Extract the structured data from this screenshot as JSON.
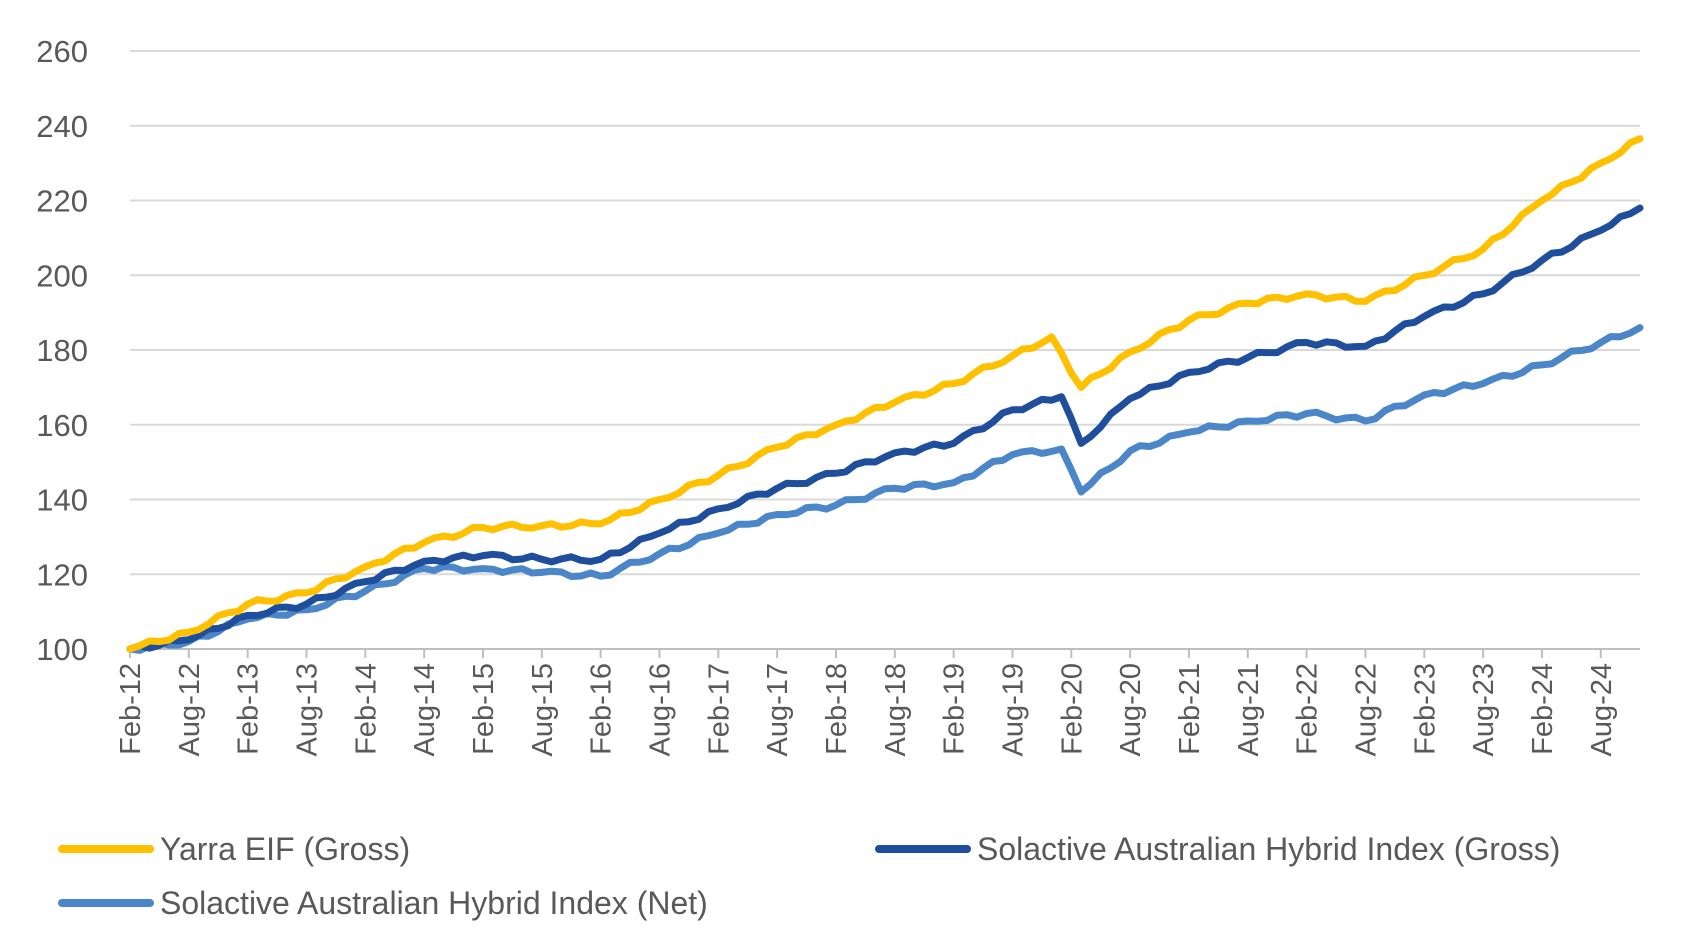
{
  "chart_data": {
    "type": "line",
    "title": "",
    "xlabel": "",
    "ylabel": "",
    "ylim": [
      100,
      260
    ],
    "yticks": [
      100,
      120,
      140,
      160,
      180,
      200,
      220,
      240,
      260
    ],
    "grid": true,
    "legend_position": "bottom",
    "x_tick_labels": [
      "Feb-12",
      "Aug-12",
      "Feb-13",
      "Aug-13",
      "Feb-14",
      "Aug-14",
      "Feb-15",
      "Aug-15",
      "Feb-16",
      "Aug-16",
      "Feb-17",
      "Aug-17",
      "Feb-18",
      "Aug-18",
      "Feb-19",
      "Aug-19",
      "Feb-20",
      "Aug-20",
      "Feb-21",
      "Aug-21",
      "Feb-22",
      "Aug-22",
      "Feb-23",
      "Aug-23",
      "Feb-24",
      "Aug-24"
    ],
    "x_start": "Feb-12",
    "x_end": "Dec-24",
    "series": [
      {
        "name": "Yarra EIF (Gross)",
        "color": "#FFC000",
        "points": [
          [
            "Feb-12",
            100
          ],
          [
            "Aug-12",
            104.5
          ],
          [
            "Feb-13",
            112
          ],
          [
            "Aug-13",
            115
          ],
          [
            "Feb-14",
            122
          ],
          [
            "Aug-14",
            128.5
          ],
          [
            "Feb-15",
            132.5
          ],
          [
            "Aug-15",
            133
          ],
          [
            "Feb-16",
            133.5
          ],
          [
            "Aug-16",
            140
          ],
          [
            "Feb-17",
            146.5
          ],
          [
            "Aug-17",
            154
          ],
          [
            "Feb-18",
            160
          ],
          [
            "Aug-18",
            166
          ],
          [
            "Feb-19",
            171
          ],
          [
            "Aug-19",
            178.5
          ],
          [
            "Dec-19",
            183.5
          ],
          [
            "Mar-20",
            170
          ],
          [
            "Aug-20",
            179.5
          ],
          [
            "Feb-21",
            188
          ],
          [
            "Aug-21",
            192.5
          ],
          [
            "Feb-22",
            195
          ],
          [
            "Aug-22",
            193
          ],
          [
            "Feb-23",
            200
          ],
          [
            "Aug-23",
            207
          ],
          [
            "Feb-24",
            220
          ],
          [
            "Aug-24",
            230
          ],
          [
            "Dec-24",
            236.5
          ]
        ]
      },
      {
        "name": "Solactive Australian Hybrid Index (Gross)",
        "color": "#1F4E9C",
        "points": [
          [
            "Feb-12",
            100
          ],
          [
            "Aug-12",
            102.5
          ],
          [
            "Feb-13",
            109
          ],
          [
            "Aug-13",
            112
          ],
          [
            "Feb-14",
            118
          ],
          [
            "Aug-14",
            123.5
          ],
          [
            "Feb-15",
            125
          ],
          [
            "Aug-15",
            124
          ],
          [
            "Feb-16",
            124
          ],
          [
            "Aug-16",
            131
          ],
          [
            "Feb-17",
            137.5
          ],
          [
            "Aug-17",
            143
          ],
          [
            "Feb-18",
            147
          ],
          [
            "Aug-18",
            152.5
          ],
          [
            "Feb-19",
            155
          ],
          [
            "Aug-19",
            164
          ],
          [
            "Jan-20",
            167.5
          ],
          [
            "Mar-20",
            155
          ],
          [
            "Aug-20",
            167
          ],
          [
            "Feb-21",
            174
          ],
          [
            "Aug-21",
            178
          ],
          [
            "Feb-22",
            182
          ],
          [
            "Aug-22",
            181
          ],
          [
            "Feb-23",
            189
          ],
          [
            "Aug-23",
            195
          ],
          [
            "Feb-24",
            204
          ],
          [
            "Aug-24",
            212
          ],
          [
            "Dec-24",
            218
          ]
        ]
      },
      {
        "name": "Solactive Australian Hybrid Index (Net)",
        "color": "#4A86C8",
        "points": [
          [
            "Feb-12",
            100
          ],
          [
            "Aug-12",
            102
          ],
          [
            "Feb-13",
            108
          ],
          [
            "Aug-13",
            110.5
          ],
          [
            "Feb-14",
            115.5
          ],
          [
            "Aug-14",
            121.5
          ],
          [
            "Feb-15",
            121.5
          ],
          [
            "Aug-15",
            120.5
          ],
          [
            "Feb-16",
            119.5
          ],
          [
            "Aug-16",
            125.5
          ],
          [
            "Feb-17",
            131
          ],
          [
            "Aug-17",
            136
          ],
          [
            "Feb-18",
            138.5
          ],
          [
            "Aug-18",
            143
          ],
          [
            "Feb-19",
            144.5
          ],
          [
            "Aug-19",
            152
          ],
          [
            "Jan-20",
            153.5
          ],
          [
            "Mar-20",
            142
          ],
          [
            "Aug-20",
            153
          ],
          [
            "Feb-21",
            158
          ],
          [
            "Aug-21",
            161
          ],
          [
            "Feb-22",
            163
          ],
          [
            "Aug-22",
            161
          ],
          [
            "Feb-23",
            168
          ],
          [
            "Aug-23",
            171
          ],
          [
            "Feb-24",
            176
          ],
          [
            "Aug-24",
            182
          ],
          [
            "Dec-24",
            186
          ]
        ]
      }
    ]
  }
}
